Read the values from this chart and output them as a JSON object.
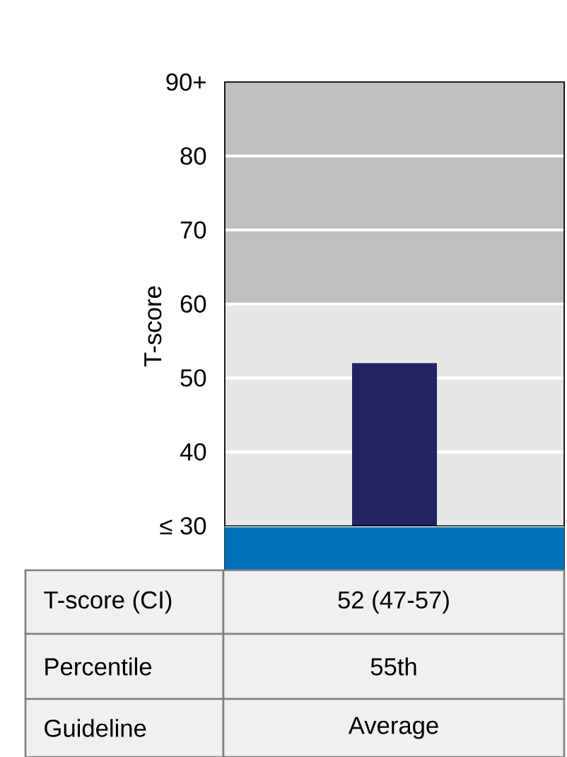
{
  "chart_data": {
    "type": "bar",
    "ylabel": "T-score",
    "categories": [
      null
    ],
    "values": [
      22
    ],
    "base": [
      30
    ],
    "color": "#21245f",
    "ylim": [
      24,
      90
    ],
    "yticks": [
      {
        "value": 30,
        "label": "≤ 30"
      },
      40,
      50,
      60,
      70,
      80,
      {
        "value": 90,
        "label": "90+"
      }
    ],
    "grid": "y",
    "bands": [
      {
        "axis": "y",
        "from": 60,
        "to": 90,
        "color": "#bebfc1"
      },
      {
        "axis": "y",
        "from": 30,
        "to": 60,
        "color": "#e6e7e9"
      },
      {
        "axis": "y",
        "from": 24,
        "to": 30,
        "color": "#0070b8"
      }
    ],
    "annotations": [
      "T-score (CI)",
      "52 (47-57)",
      "Percentile",
      "55th",
      "Guideline",
      "Average"
    ]
  }
}
